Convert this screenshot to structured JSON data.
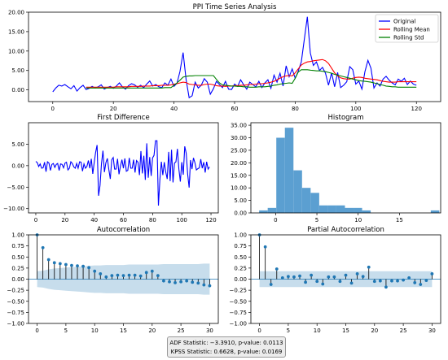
{
  "chart_data": [
    {
      "type": "line",
      "title": "PPI Time Series Analysis",
      "xlim": [
        -8,
        128
      ],
      "ylim": [
        -3,
        20
      ],
      "xticks": [
        0,
        20,
        40,
        60,
        80,
        100,
        120
      ],
      "yticks": [
        0,
        5,
        10,
        15,
        20
      ],
      "ytick_labels": [
        "0.00",
        "5.00",
        "10.00",
        "15.00",
        "20.00"
      ],
      "legend": "top-right",
      "series": [
        {
          "name": "Original",
          "color": "#0000ff",
          "x0": 0,
          "values": [
            -0.5,
            0.5,
            1.2,
            1.0,
            1.4,
            0.8,
            0.3,
            1.1,
            -0.3,
            0.6,
            1.2,
            0.1,
            0.4,
            0.9,
            0.5,
            0.8,
            1.3,
            0.2,
            0.6,
            0.9,
            0.4,
            1.0,
            1.8,
            0.8,
            0.2,
            1.1,
            1.6,
            1.3,
            0.7,
            1.2,
            0.6,
            1.5,
            2.3,
            1.0,
            1.4,
            0.8,
            0.6,
            1.8,
            1.2,
            2.8,
            0.9,
            1.7,
            4.8,
            9.6,
            2.6,
            -2.0,
            -1.5,
            2.0,
            0.5,
            1.2,
            2.9,
            2.0,
            -1.1,
            0.3,
            2.2,
            1.4,
            0.6,
            2.2,
            0.2,
            0.1,
            1.5,
            0.9,
            2.6,
            1.3,
            0.2,
            2.0,
            1.4,
            0.8,
            2.2,
            0.6,
            1.8,
            2.6,
            0.4,
            3.8,
            2.0,
            4.3,
            1.0,
            6.2,
            3.4,
            5.4,
            3.0,
            4.8,
            7.2,
            13.0,
            18.8,
            9.5,
            6.3,
            7.2,
            5.0,
            5.8,
            4.3,
            1.2,
            4.4,
            0.8,
            4.5,
            0.6,
            1.2,
            2.1,
            6.0,
            5.2,
            1.5,
            2.3,
            0.2,
            4.7,
            7.6,
            5.6,
            0.5,
            1.8,
            1.0,
            2.8,
            3.5,
            2.5,
            1.8,
            1.3,
            2.8,
            2.2,
            3.0,
            1.4,
            2.3,
            1.5,
            1.2
          ]
        },
        {
          "name": "Rolling Mean",
          "color": "#ff0000",
          "x0": 11,
          "values": [
            0.7,
            0.7,
            0.7,
            0.7,
            0.7,
            0.7,
            0.7,
            0.7,
            0.7,
            0.7,
            0.8,
            0.8,
            0.8,
            0.8,
            0.8,
            0.9,
            0.9,
            0.9,
            0.9,
            1.0,
            1.0,
            1.0,
            1.1,
            1.1,
            1.1,
            1.2,
            1.2,
            1.2,
            1.3,
            1.5,
            1.6,
            1.8,
            2.0,
            1.9,
            1.5,
            1.4,
            1.3,
            1.2,
            1.2,
            1.4,
            1.5,
            1.5,
            1.3,
            1.1,
            1.0,
            1.0,
            0.9,
            1.0,
            1.0,
            1.1,
            1.1,
            1.2,
            1.2,
            1.3,
            1.4,
            1.4,
            1.5,
            1.6,
            1.6,
            1.7,
            1.8,
            2.0,
            2.2,
            2.6,
            3.0,
            3.4,
            3.6,
            3.7,
            3.6,
            4.4,
            5.4,
            6.4,
            6.9,
            7.2,
            7.3,
            7.5,
            7.6,
            7.7,
            7.8,
            7.5,
            6.8,
            5.6,
            4.4,
            3.6,
            3.1,
            2.9,
            2.8,
            2.8,
            3.0,
            3.2,
            3.3,
            3.2,
            3.0,
            2.9,
            2.8,
            2.7,
            2.6,
            2.4,
            2.2,
            2.1,
            2.0,
            2.0,
            2.0,
            2.1,
            2.1,
            2.1,
            2.1,
            2.1,
            2.1,
            2.1
          ]
        },
        {
          "name": "Rolling Std",
          "color": "#008000",
          "x0": 11,
          "values": [
            0.5,
            0.5,
            0.5,
            0.5,
            0.5,
            0.5,
            0.5,
            0.5,
            0.5,
            0.5,
            0.5,
            0.5,
            0.5,
            0.5,
            0.5,
            0.5,
            0.5,
            0.5,
            0.5,
            0.5,
            0.5,
            0.5,
            0.5,
            0.5,
            0.5,
            0.5,
            0.6,
            0.6,
            0.6,
            1.2,
            1.8,
            2.5,
            3.3,
            3.5,
            3.6,
            3.6,
            3.7,
            3.7,
            3.7,
            3.7,
            3.7,
            3.7,
            3.7,
            2.7,
            1.8,
            1.3,
            1.2,
            1.1,
            1.0,
            1.0,
            0.9,
            0.9,
            0.8,
            0.8,
            0.7,
            0.7,
            0.7,
            0.8,
            0.8,
            0.8,
            0.9,
            1.0,
            1.2,
            1.3,
            1.5,
            1.6,
            1.7,
            1.8,
            1.7,
            3.0,
            4.6,
            5.2,
            5.2,
            5.2,
            5.1,
            5.0,
            4.9,
            4.9,
            4.8,
            4.7,
            4.5,
            4.3,
            4.0,
            3.8,
            3.6,
            3.4,
            3.2,
            3.0,
            2.8,
            2.6,
            2.4,
            2.3,
            2.2,
            2.1,
            2.0,
            1.8,
            1.6,
            1.4,
            1.2,
            1.0,
            0.9,
            0.8,
            0.8,
            0.7,
            0.7,
            0.7,
            0.7,
            0.7,
            0.7,
            0.7
          ]
        }
      ]
    },
    {
      "type": "line",
      "title": "First Difference",
      "xlim": [
        -5,
        125
      ],
      "ylim": [
        -11,
        10
      ],
      "xticks": [
        0,
        20,
        40,
        60,
        80,
        100,
        120
      ],
      "yticks": [
        -10,
        -5,
        0,
        5
      ],
      "ytick_labels": [
        "−10.00",
        "−5.00",
        "0.00",
        "5.00"
      ],
      "series": [
        {
          "color": "#0000ff",
          "x0": 0,
          "values": [
            1.0,
            0.7,
            -0.2,
            0.4,
            -0.6,
            -0.5,
            0.8,
            -1.4,
            0.9,
            0.6,
            -1.1,
            0.3,
            0.5,
            -0.4,
            0.3,
            0.5,
            -1.1,
            0.4,
            0.3,
            -0.5,
            0.6,
            0.8,
            -1.0,
            -0.6,
            0.9,
            0.5,
            -0.3,
            -0.6,
            0.5,
            -0.6,
            0.9,
            0.8,
            -1.3,
            0.4,
            -0.6,
            -0.2,
            1.2,
            -0.6,
            1.6,
            -1.9,
            0.8,
            3.1,
            4.8,
            -7.0,
            -4.6,
            0.5,
            3.5,
            -1.5,
            0.7,
            1.7,
            -0.9,
            -3.1,
            1.4,
            1.9,
            -0.8,
            -0.8,
            1.6,
            -2.0,
            -0.1,
            1.4,
            -0.6,
            1.7,
            -1.3,
            -1.1,
            1.8,
            -0.6,
            -0.6,
            1.4,
            -1.6,
            1.2,
            0.8,
            -2.2,
            3.4,
            -1.8,
            2.3,
            -3.3,
            5.2,
            -2.8,
            2.0,
            -2.4,
            1.8,
            2.4,
            5.8,
            5.8,
            -9.3,
            -3.2,
            0.9,
            -2.2,
            0.8,
            -1.5,
            -3.1,
            3.2,
            -3.6,
            3.7,
            -3.9,
            0.6,
            0.9,
            3.9,
            -0.8,
            -3.7,
            0.8,
            -2.1,
            4.5,
            2.9,
            -2.0,
            -5.1,
            1.3,
            -0.8,
            1.8,
            0.7,
            -1.0,
            -0.7,
            -0.5,
            1.5,
            -0.6,
            0.8,
            -1.6,
            0.9,
            -0.8,
            -0.3
          ]
        }
      ]
    },
    {
      "type": "bar",
      "title": "Histogram",
      "color": "#5b9fd1",
      "xlim": [
        -3,
        20
      ],
      "ylim": [
        0,
        36
      ],
      "xticks": [
        0,
        5,
        10,
        15
      ],
      "yticks": [
        0,
        5,
        10,
        15,
        20,
        25,
        30,
        35
      ],
      "ytick_labels": [
        "0.00",
        "5.00",
        "10.00",
        "15.00",
        "20.00",
        "25.00",
        "30.00",
        "35.00"
      ],
      "bin_start": -2.0,
      "bin_width": 1.04,
      "values": [
        1,
        2,
        30,
        34,
        17,
        10,
        8,
        3,
        3,
        3,
        2,
        2,
        1,
        0,
        0,
        0,
        0,
        0,
        0,
        0,
        1
      ]
    },
    {
      "type": "scatter",
      "title": "Autocorrelation",
      "color": "#1f77b4",
      "xlim": [
        -1.5,
        31.5
      ],
      "ylim": [
        -1.0,
        1.0
      ],
      "xticks": [
        0,
        5,
        10,
        15,
        20,
        25,
        30
      ],
      "yticks": [
        -1.0,
        -0.75,
        -0.5,
        -0.25,
        0,
        0.25,
        0.5,
        0.75,
        1.0
      ],
      "ytick_labels": [
        "−1.00",
        "−0.75",
        "−0.50",
        "−0.25",
        "0.00",
        "0.25",
        "0.50",
        "0.75",
        "1.00"
      ],
      "x0": 0,
      "values": [
        1.0,
        0.71,
        0.44,
        0.37,
        0.35,
        0.33,
        0.31,
        0.3,
        0.29,
        0.26,
        0.18,
        0.12,
        0.05,
        0.08,
        0.09,
        0.08,
        0.09,
        0.09,
        0.07,
        0.15,
        0.18,
        0.08,
        -0.04,
        -0.06,
        -0.08,
        -0.06,
        -0.04,
        -0.07,
        -0.09,
        -0.13,
        -0.15
      ],
      "confidence_band": [
        0.18,
        0.19,
        0.22,
        0.24,
        0.25,
        0.26,
        0.27,
        0.28,
        0.29,
        0.3,
        0.31,
        0.31,
        0.32,
        0.32,
        0.32,
        0.32,
        0.33,
        0.33,
        0.33,
        0.33,
        0.33,
        0.33,
        0.34,
        0.34,
        0.34,
        0.34,
        0.34,
        0.34,
        0.34,
        0.35,
        0.35
      ]
    },
    {
      "type": "scatter",
      "title": "Partial Autocorrelation",
      "color": "#1f77b4",
      "xlim": [
        -1.5,
        31.5
      ],
      "ylim": [
        -1.0,
        1.0
      ],
      "xticks": [
        0,
        5,
        10,
        15,
        20,
        25,
        30
      ],
      "yticks": [
        -1.0,
        -0.75,
        -0.5,
        -0.25,
        0,
        0.25,
        0.5,
        0.75,
        1.0
      ],
      "ytick_labels": [
        "−1.00",
        "−0.75",
        "−0.50",
        "−0.25",
        "0.00",
        "0.25",
        "0.50",
        "0.75",
        "1.00"
      ],
      "x0": 0,
      "values": [
        1.0,
        0.73,
        -0.12,
        0.23,
        0.03,
        0.06,
        0.05,
        0.07,
        -0.07,
        0.09,
        -0.05,
        -0.11,
        0.05,
        0.05,
        -0.05,
        0.09,
        -0.09,
        0.12,
        0.06,
        0.27,
        -0.05,
        -0.04,
        -0.18,
        -0.04,
        -0.04,
        -0.02,
        0.03,
        -0.08,
        -0.12,
        -0.03,
        0.12
      ],
      "confidence_band": 0.18
    }
  ],
  "stats_box": {
    "adf": "ADF Statistic: −3.3910, p-value: 0.0113",
    "kpss": "KPSS Statistic: 0.6628, p-value: 0.0169"
  }
}
